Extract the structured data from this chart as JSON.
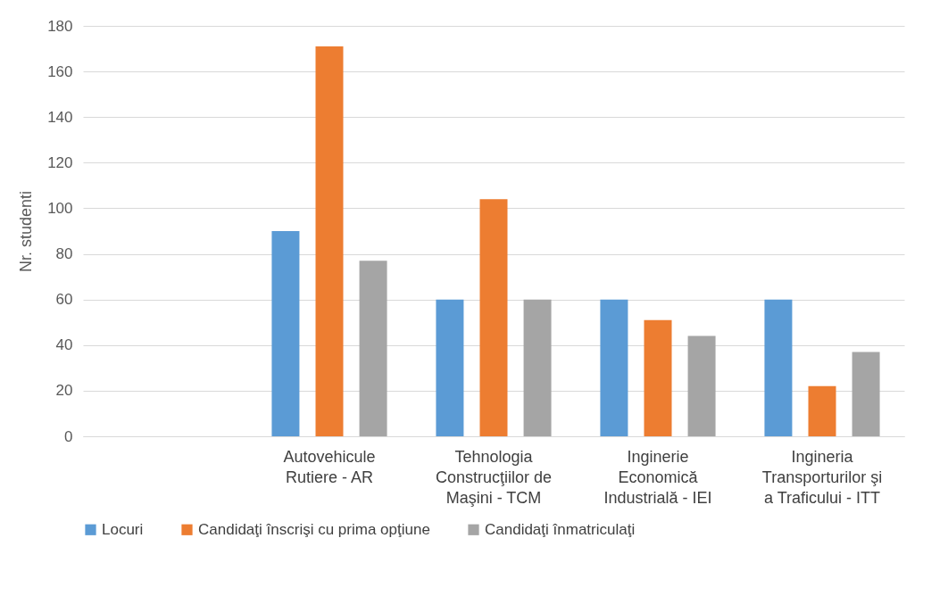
{
  "chart_data": {
    "type": "bar",
    "ylabel": "Nr. studenti",
    "categories": [
      null,
      "Autovehicule Rutiere - AR",
      "Tehnologia Construcţiilor de Maşini - TCM",
      "Inginerie Economică Industrială - IEI",
      "Ingineria Transporturilor şi a Traficului - ITT"
    ],
    "series": [
      {
        "name": "Locuri",
        "color": "#5b9bd5",
        "values": [
          null,
          90,
          60,
          60,
          60
        ]
      },
      {
        "name": "Candidaţi înscrişi cu prima opţiune",
        "color": "#ed7d31",
        "values": [
          null,
          171,
          104,
          51,
          22
        ]
      },
      {
        "name": "Candidaţi înmatriculaţi",
        "color": "#a5a5a5",
        "values": [
          null,
          77,
          60,
          44,
          37
        ]
      }
    ],
    "ylim": [
      0,
      180
    ],
    "yticks": [
      0,
      20,
      40,
      60,
      80,
      100,
      120,
      140,
      160,
      180
    ],
    "grid": "y",
    "legend": "bottom"
  }
}
